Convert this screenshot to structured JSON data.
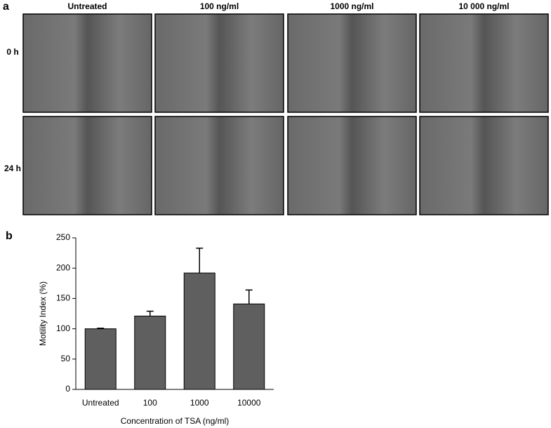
{
  "panel_a": {
    "label": "a",
    "columns": [
      "Untreated",
      "100 ng/ml",
      "1000 ng/ml",
      "10 000 ng/ml"
    ],
    "rows": [
      "0 h",
      "24 h"
    ]
  },
  "chart_data": {
    "type": "bar",
    "panel_label": "b",
    "x_label": "Concentration of TSA (ng/ml)",
    "y_label": "Motility Index (%)",
    "categories": [
      "Untreated",
      "100",
      "1000",
      "10000"
    ],
    "values": [
      100,
      121,
      192,
      141
    ],
    "errors": [
      1,
      8,
      41,
      23
    ],
    "color": "#5f5f5f",
    "ylim": [
      0,
      250
    ],
    "yticks": [
      0,
      50,
      100,
      150,
      200,
      250
    ]
  }
}
